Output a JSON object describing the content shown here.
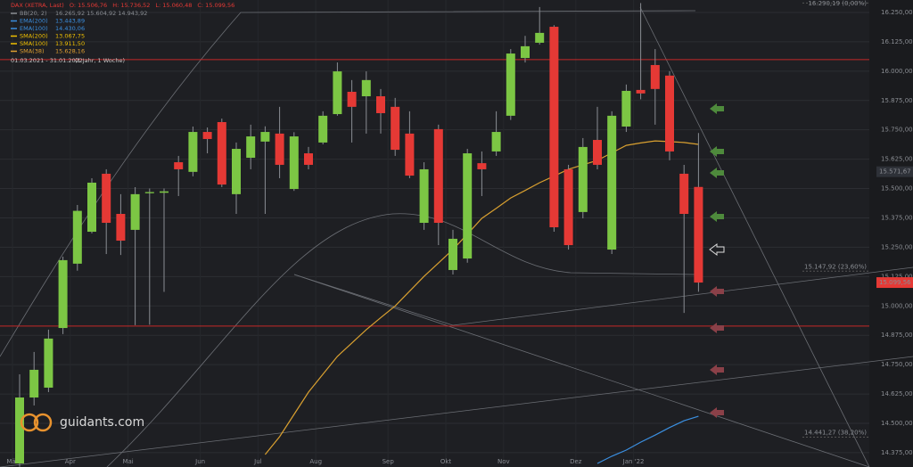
{
  "chart_data": {
    "type": "candlestick",
    "header": {
      "title": "DAX (XETRA, Last)",
      "ohlc": [
        "O: 15.506,76",
        "H: 15.736,52",
        "L: 15.060,48",
        "C: 15.099,56"
      ],
      "color": "#e53935"
    },
    "indicators": [
      {
        "name": "BB(20, 2)",
        "value": "16.265,92  15.604,92  14.943,92",
        "color": "#8a8d93"
      },
      {
        "name": "EMA(200)",
        "value": "13.443,89",
        "color": "#3b8fe0"
      },
      {
        "name": "EMA(100)",
        "value": "14.430,06",
        "color": "#3b8fe0"
      },
      {
        "name": "SMA(200)",
        "value": "13.067,75",
        "color": "#f0c000"
      },
      {
        "name": "SMA(100)",
        "value": "13.911,50",
        "color": "#f0c000"
      },
      {
        "name": "SMA(38)",
        "value": "15.628,16",
        "color": "#e0a030"
      }
    ],
    "period": "01.03.2021 - 31.01.2022",
    "period_note": "(1 Jahr, 1 Woche)",
    "brand": "guidants.com",
    "categories": [
      "Mär",
      null,
      null,
      null,
      "Apr",
      null,
      null,
      null,
      "Mai",
      null,
      null,
      null,
      null,
      "Jun",
      null,
      null,
      null,
      "Jul",
      null,
      null,
      null,
      "Aug",
      null,
      null,
      null,
      null,
      "Sep",
      null,
      null,
      null,
      "Okt",
      null,
      null,
      null,
      "Nov",
      null,
      null,
      null,
      null,
      "Dez",
      null,
      null,
      null,
      "Jan '22",
      null,
      null,
      null,
      null
    ],
    "open": [
      14329,
      14610,
      14652,
      14906,
      15180,
      15316,
      15563,
      15392,
      15324,
      15480,
      15482,
      15612,
      15571,
      15741,
      15783,
      15476,
      15631,
      15700,
      15734,
      15498,
      15650,
      15696,
      15817,
      15912,
      15893,
      15893,
      15848,
      15734,
      15354,
      15753,
      15153,
      15202,
      15608,
      15658,
      15810,
      16056,
      16121,
      16189,
      15582,
      15400,
      15707,
      15240,
      15764,
      15920,
      16026,
      15981,
      15563,
      15506.76
    ],
    "high": [
      14709,
      14804,
      14899,
      15210,
      15430,
      15544,
      15582,
      15476,
      15506,
      15500,
      15500,
      15639,
      15764,
      15760,
      15798,
      15696,
      15772,
      15765,
      15848,
      15740,
      15677,
      15829,
      16037,
      15962,
      15999,
      15924,
      15886,
      15829,
      15612,
      15772,
      15324,
      15669,
      15658,
      15829,
      16094,
      16150,
      16273,
      16196,
      15601,
      15715,
      15848,
      15829,
      15943,
      16290,
      16094,
      16000,
      15601,
      15736.52
    ],
    "low": [
      14315,
      14576,
      14633,
      14880,
      15150,
      15309,
      15221,
      15217,
      14918,
      14920,
      15060,
      15468,
      15552,
      15650,
      15506,
      15392,
      15582,
      15392,
      15544,
      15490,
      15582,
      15688,
      15810,
      15696,
      15734,
      15734,
      15639,
      15544,
      15324,
      15259,
      15134,
      15184,
      15468,
      15639,
      15792,
      16037,
      16113,
      15316,
      15240,
      15373,
      15582,
      15221,
      15741,
      15880,
      15772,
      15620,
      14970,
      15060.48
    ],
    "close": [
      14610,
      14728,
      14861,
      15195,
      15405,
      15525,
      15354,
      15278,
      15476,
      15485,
      15488,
      15582,
      15741,
      15711,
      15517,
      15669,
      15722,
      15741,
      15601,
      15722,
      15601,
      15810,
      15999,
      15848,
      15962,
      15821,
      15665,
      15555,
      15582,
      15354,
      15286,
      15650,
      15582,
      15741,
      16075,
      16106,
      16163,
      15335,
      15259,
      15677,
      15601,
      15810,
      15916,
      15905,
      15924,
      15658,
      15392,
      15099.56
    ],
    "up_color": "#7cc644",
    "down_color": "#e53935",
    "overlays": [
      {
        "color": "#d9a030",
        "values": [
          null,
          null,
          null,
          null,
          null,
          null,
          null,
          null,
          null,
          null,
          null,
          null,
          null,
          null,
          null,
          null,
          null,
          14367,
          14443,
          14538,
          14633,
          14709,
          14785,
          14842,
          14899,
          14950,
          15000,
          15063,
          15126,
          15183,
          15240,
          15306,
          15373,
          15416,
          15460,
          15492,
          15525,
          15553,
          15582,
          15601,
          15620,
          15652,
          15684,
          15694,
          15703,
          15700,
          15696,
          15688
        ]
      },
      {
        "color": "#3b8fe0",
        "values": [
          null,
          null,
          null,
          null,
          null,
          null,
          null,
          null,
          null,
          null,
          null,
          null,
          null,
          null,
          null,
          null,
          null,
          null,
          null,
          null,
          null,
          null,
          null,
          null,
          null,
          null,
          null,
          null,
          null,
          null,
          null,
          null,
          null,
          null,
          null,
          null,
          null,
          null,
          null,
          null,
          14329,
          14360,
          14386,
          14420,
          14450,
          14482,
          14511,
          14530
        ]
      }
    ],
    "ylim": [
      14314,
      16303
    ],
    "yticks": [
      {
        "value": 14375,
        "label": "14.375,00"
      },
      {
        "value": 14500,
        "label": "14.500,00"
      },
      {
        "value": 14625,
        "label": "14.625,00"
      },
      {
        "value": 14750,
        "label": "14.750,00"
      },
      {
        "value": 14875,
        "label": "14.875,00"
      },
      {
        "value": 15000,
        "label": "15.000,00"
      },
      {
        "value": 15125,
        "label": "15.125,00"
      },
      {
        "value": 15250,
        "label": "15.250,00"
      },
      {
        "value": 15375,
        "label": "15.375,00"
      },
      {
        "value": 15500,
        "label": "15.500,00"
      },
      {
        "value": 15625,
        "label": "15.625,00"
      },
      {
        "value": 15750,
        "label": "15.750,00"
      },
      {
        "value": 15875,
        "label": "15.875,00"
      },
      {
        "value": 16000,
        "label": "16.000,00"
      },
      {
        "value": 16125,
        "label": "16.125,00"
      },
      {
        "value": 16250,
        "label": "16.250,00"
      }
    ],
    "grid": true,
    "hlines": [
      16049,
      14914
    ],
    "hline_color": "#c62828",
    "fib_levels": [
      {
        "value": 16290.19,
        "label": "16.290,19 (0,00%)"
      },
      {
        "value": 15147.92,
        "label": "15.147,92 (23,60%)"
      },
      {
        "value": 14441.27,
        "label": "14.441,27 (38,20%)"
      }
    ],
    "price_tags": [
      {
        "value": 15571.67,
        "label": "15.571,67",
        "color": "#2e3138"
      },
      {
        "value": 15099.56,
        "label": "15.099,56",
        "color": "#e53935"
      }
    ]
  }
}
